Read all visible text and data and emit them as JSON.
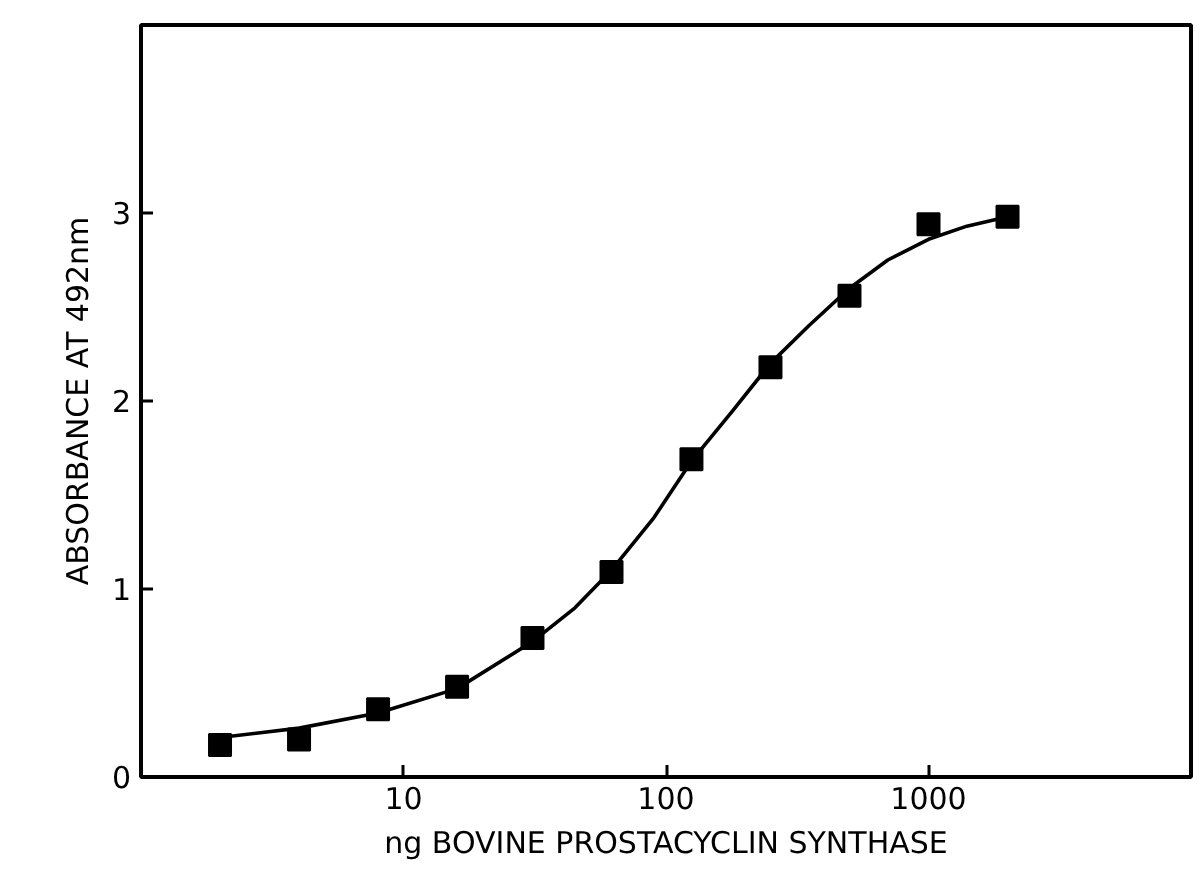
{
  "chart_data": {
    "type": "scatter",
    "xlabel": "ng BOVINE PROSTACYCLIN SYNTHASE",
    "ylabel": "ABSORBANCE AT 492nm",
    "log": "x",
    "xlim": [
      1,
      10000
    ],
    "ylim": [
      0,
      4
    ],
    "xticks": [
      10,
      100,
      1000
    ],
    "yticks": [
      0,
      1,
      2,
      3
    ],
    "grid": false,
    "series": [
      {
        "marker": "square",
        "color": "#000000",
        "x": [
          2,
          4,
          8,
          16,
          31,
          62,
          125,
          250,
          500,
          1000,
          2000
        ],
        "values": [
          0.17,
          0.2,
          0.36,
          0.48,
          0.74,
          1.09,
          1.69,
          2.18,
          2.56,
          2.94,
          2.98
        ]
      },
      {
        "type": "line",
        "color": "#000000",
        "line_style": "solid",
        "x": [
          2,
          4,
          8,
          16,
          31,
          45,
          62,
          90,
          125,
          180,
          250,
          350,
          500,
          700,
          1000,
          1400,
          2000
        ],
        "values": [
          0.21,
          0.26,
          0.34,
          0.47,
          0.72,
          0.9,
          1.1,
          1.38,
          1.68,
          1.95,
          2.2,
          2.4,
          2.6,
          2.75,
          2.86,
          2.93,
          2.98
        ]
      }
    ]
  }
}
